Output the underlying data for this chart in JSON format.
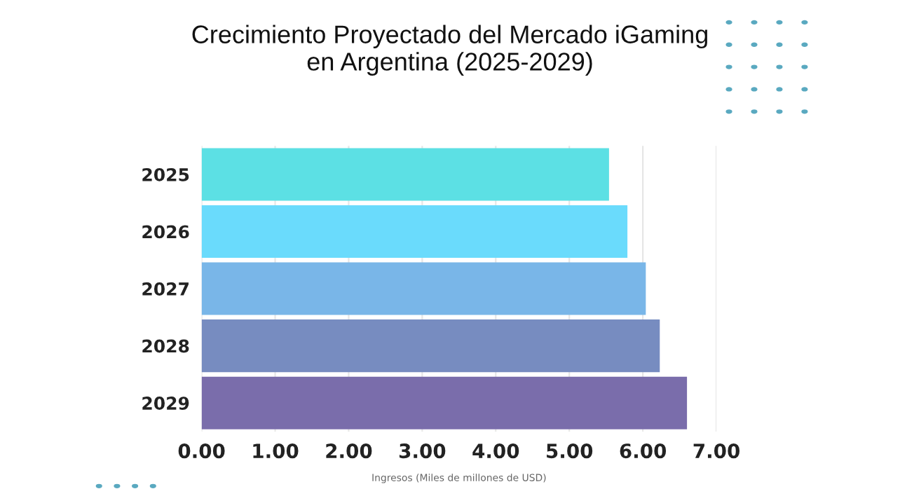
{
  "chart_data": {
    "type": "bar",
    "orientation": "horizontal",
    "title": "Crecimiento Proyectado del Mercado iGaming\nen Argentina (2025-2029)",
    "xlabel": "Ingresos (Miles de millones de USD)",
    "categories": [
      "2025",
      "2026",
      "2027",
      "2028",
      "2029"
    ],
    "values": [
      5.54,
      5.79,
      6.04,
      6.23,
      6.6
    ],
    "colors": [
      "#5ce0e4",
      "#6adbfc",
      "#79b6e8",
      "#778cc0",
      "#7a6dab"
    ],
    "xlim": [
      0,
      7
    ],
    "xticks": [
      {
        "value": 0,
        "label": "0.00"
      },
      {
        "value": 1,
        "label": "1.00"
      },
      {
        "value": 2,
        "label": "2.00"
      },
      {
        "value": 3,
        "label": "3.00"
      },
      {
        "value": 4,
        "label": "4.00"
      },
      {
        "value": 5,
        "label": "5.00"
      },
      {
        "value": 6,
        "label": "6.00"
      },
      {
        "value": 7,
        "label": "7.00"
      }
    ],
    "grid": "x"
  }
}
